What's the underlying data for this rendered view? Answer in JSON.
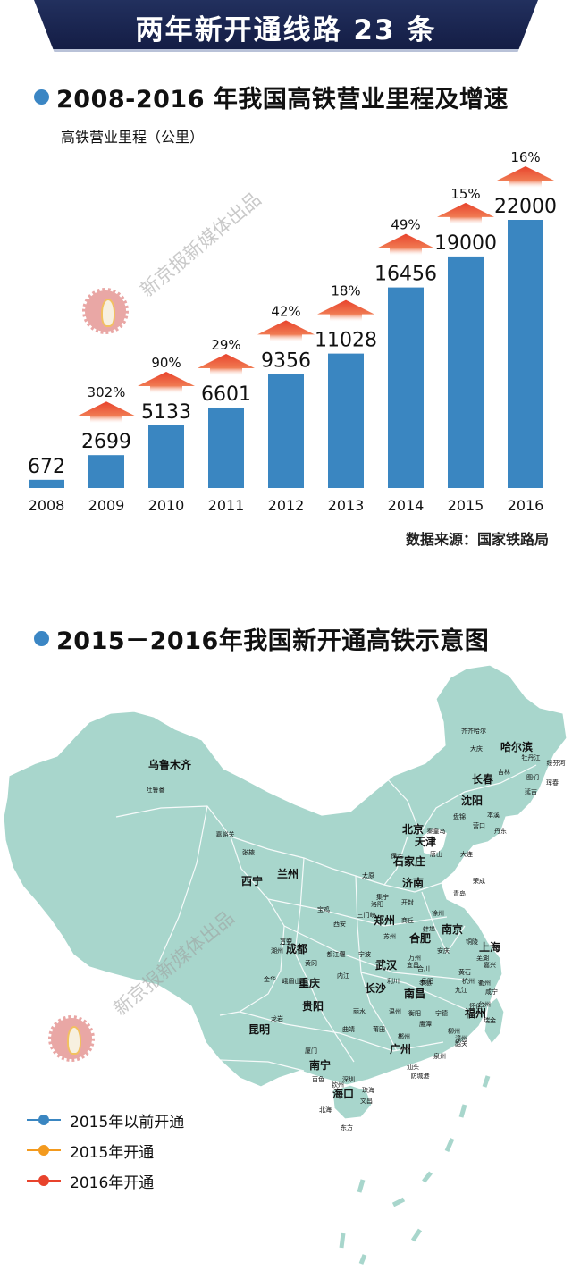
{
  "banner": {
    "title": "两年新开通线路 23 条"
  },
  "section1": {
    "title": "2008-2016 年我国高铁营业里程及增速",
    "unit_label": "高铁营业里程（公里）"
  },
  "chart_data": {
    "type": "bar",
    "categories": [
      "2008",
      "2009",
      "2010",
      "2011",
      "2012",
      "2013",
      "2014",
      "2015",
      "2016"
    ],
    "values": [
      672,
      2699,
      5133,
      6601,
      9356,
      11028,
      16456,
      19000,
      22000
    ],
    "growth": [
      "",
      "302%",
      "90%",
      "29%",
      "42%",
      "18%",
      "49%",
      "15%",
      "16%"
    ],
    "title": "2008-2016 年我国高铁营业里程及增速",
    "xlabel": "",
    "ylabel": "高铁营业里程（公里）",
    "ylim": [
      0,
      22000
    ],
    "bar_color": "#3a86c1",
    "arrow_color": "#e8432c",
    "grid": false
  },
  "source": "数据来源：国家铁路局",
  "watermark": "新京报新媒体出品",
  "section2": {
    "title": "2015－2016年我国新开通高铁示意图"
  },
  "map": {
    "land_color": "#a8d6cc",
    "border_color": "#ffffff",
    "cities": {
      "big": [
        "乌鲁木齐",
        "哈尔滨",
        "长春",
        "沈阳",
        "北京",
        "天津",
        "石家庄",
        "济南",
        "兰州",
        "西宁",
        "郑州",
        "成都",
        "南京",
        "合肥",
        "上海",
        "武汉",
        "重庆",
        "长沙",
        "南昌",
        "贵阳",
        "福州",
        "昆明",
        "广州",
        "南宁",
        "海口"
      ],
      "small": [
        "齐齐哈尔",
        "大庆",
        "牡丹江",
        "绥芬河",
        "吉林",
        "珲春",
        "图们",
        "延吉",
        "盘锦",
        "营口",
        "本溪",
        "丹东",
        "秦皇岛",
        "唐山",
        "大连",
        "保定",
        "太原",
        "荣成",
        "青岛",
        "嘉峪关",
        "张掖",
        "吐鲁番",
        "宝鸡",
        "集宁",
        "开封",
        "商丘",
        "洛阳",
        "三门峡",
        "徐州",
        "西安",
        "蚌埠",
        "苏州",
        "孝感",
        "铜陵",
        "湖州",
        "都江堰",
        "万州",
        "安庆",
        "芜湖",
        "嘉兴",
        "宁波",
        "宜昌",
        "黄冈",
        "合川",
        "黄石",
        "杭州",
        "金华",
        "峨眉山",
        "内江",
        "利川",
        "岳阳",
        "九江",
        "咸宁",
        "衢州",
        "台州",
        "丽水",
        "温州",
        "怀化",
        "衡阳",
        "宁德",
        "鹰潭",
        "龙岩",
        "瑞金",
        "莆田",
        "曲靖",
        "郴州",
        "柳州",
        "韶关",
        "漳州",
        "泉州",
        "厦门",
        "汕头",
        "百色",
        "深圳",
        "防城港",
        "钦州",
        "珠海",
        "北海",
        "文昌",
        "东方",
        "万宁",
        "三亚"
      ]
    }
  },
  "legend": [
    {
      "label": "2015年以前开通",
      "color": "#3a86c1"
    },
    {
      "label": "2015年开通",
      "color": "#f39a1e"
    },
    {
      "label": "2016年开通",
      "color": "#e8432c"
    }
  ]
}
